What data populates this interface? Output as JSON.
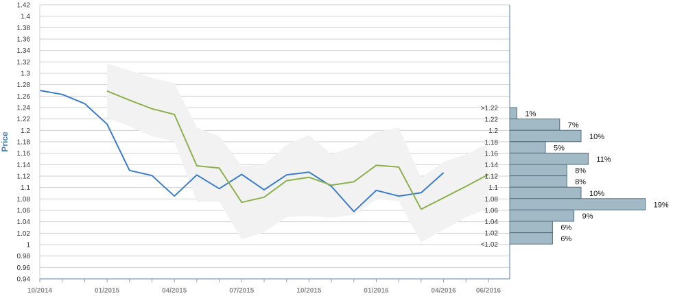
{
  "chart_data": {
    "type": "line",
    "ylabel": "Price",
    "ylim": [
      0.94,
      1.42
    ],
    "yticks": [
      "0.94",
      "0.96",
      "0.98",
      "1",
      "1.02",
      "1.04",
      "1.06",
      "1.08",
      "1.1",
      "1.12",
      "1.14",
      "1.16",
      "1.18",
      "1.2",
      "1.22",
      "1.24",
      "1.26",
      "1.28",
      "1.3",
      "1.32",
      "1.34",
      "1.36",
      "1.38",
      "1.4",
      "1.42"
    ],
    "xticks": [
      "10/2014",
      "01/2015",
      "04/2015",
      "07/2015",
      "10/2015",
      "01/2016",
      "04/2016",
      "06/2016"
    ],
    "grid": true,
    "colors": {
      "series_blue": "#3a7cc8",
      "series_green": "#8cb04c",
      "band": "#f2f2f2",
      "bars": "#a2b9c6",
      "bar_stroke": "#4f6c7c",
      "axis": "#5a7fa8"
    },
    "series": [
      {
        "x": [
          "2014-10",
          "2014-11",
          "2014-12",
          "2015-01",
          "2015-02",
          "2015-03",
          "2015-04",
          "2015-05",
          "2015-06",
          "2015-07",
          "2015-08",
          "2015-09",
          "2015-10",
          "2015-11",
          "2015-12",
          "2016-01",
          "2016-02",
          "2016-03",
          "2016-04"
        ],
        "values": [
          1.27,
          1.263,
          1.247,
          1.211,
          1.13,
          1.121,
          1.085,
          1.122,
          1.098,
          1.123,
          1.096,
          1.122,
          1.127,
          1.102,
          1.058,
          1.095,
          1.085,
          1.091,
          1.126
        ]
      },
      {
        "x": [
          "2015-01",
          "2015-02",
          "2015-03",
          "2015-04",
          "2015-05",
          "2015-06",
          "2015-07",
          "2015-08",
          "2015-09",
          "2015-10",
          "2015-11",
          "2015-12",
          "2016-01",
          "2016-02",
          "2016-03",
          "2016-04",
          "2016-05",
          "2016-06"
        ],
        "values": [
          1.269,
          1.253,
          1.238,
          1.228,
          1.138,
          1.134,
          1.074,
          1.083,
          1.112,
          1.118,
          1.104,
          1.11,
          1.139,
          1.136,
          1.062,
          1.082,
          1.102,
          1.123
        ]
      }
    ],
    "band": {
      "x": [
        "2015-01",
        "2015-02",
        "2015-03",
        "2015-04",
        "2015-05",
        "2015-06",
        "2015-07",
        "2015-08",
        "2015-09",
        "2015-10",
        "2015-11",
        "2015-12",
        "2016-01",
        "2016-02",
        "2016-03",
        "2016-04",
        "2016-05",
        "2016-06"
      ],
      "upper": [
        1.317,
        1.305,
        1.292,
        1.283,
        1.205,
        1.19,
        1.138,
        1.14,
        1.175,
        1.192,
        1.158,
        1.172,
        1.197,
        1.205,
        1.117,
        1.145,
        1.158,
        1.178
      ],
      "lower": [
        1.222,
        1.207,
        1.19,
        1.18,
        1.075,
        1.075,
        1.009,
        1.022,
        1.048,
        1.05,
        1.047,
        1.052,
        1.08,
        1.076,
        1.004,
        1.026,
        1.048,
        1.063
      ]
    },
    "histogram": {
      "bins": [
        ">1.22",
        "1.22",
        "1.2",
        "1.18",
        "1.16",
        "1.14",
        "1.12",
        "1.1",
        "1.08",
        "1.06",
        "1.04",
        "1.02",
        "<1.02"
      ],
      "values": [
        1,
        7,
        10,
        5,
        11,
        8,
        8,
        10,
        19,
        9,
        6,
        6
      ],
      "labels": [
        "1%",
        "7%",
        "10%",
        "5%",
        "11%",
        "8%",
        "8%",
        "10%",
        "19%",
        "9%",
        "6%",
        "6%"
      ]
    }
  }
}
